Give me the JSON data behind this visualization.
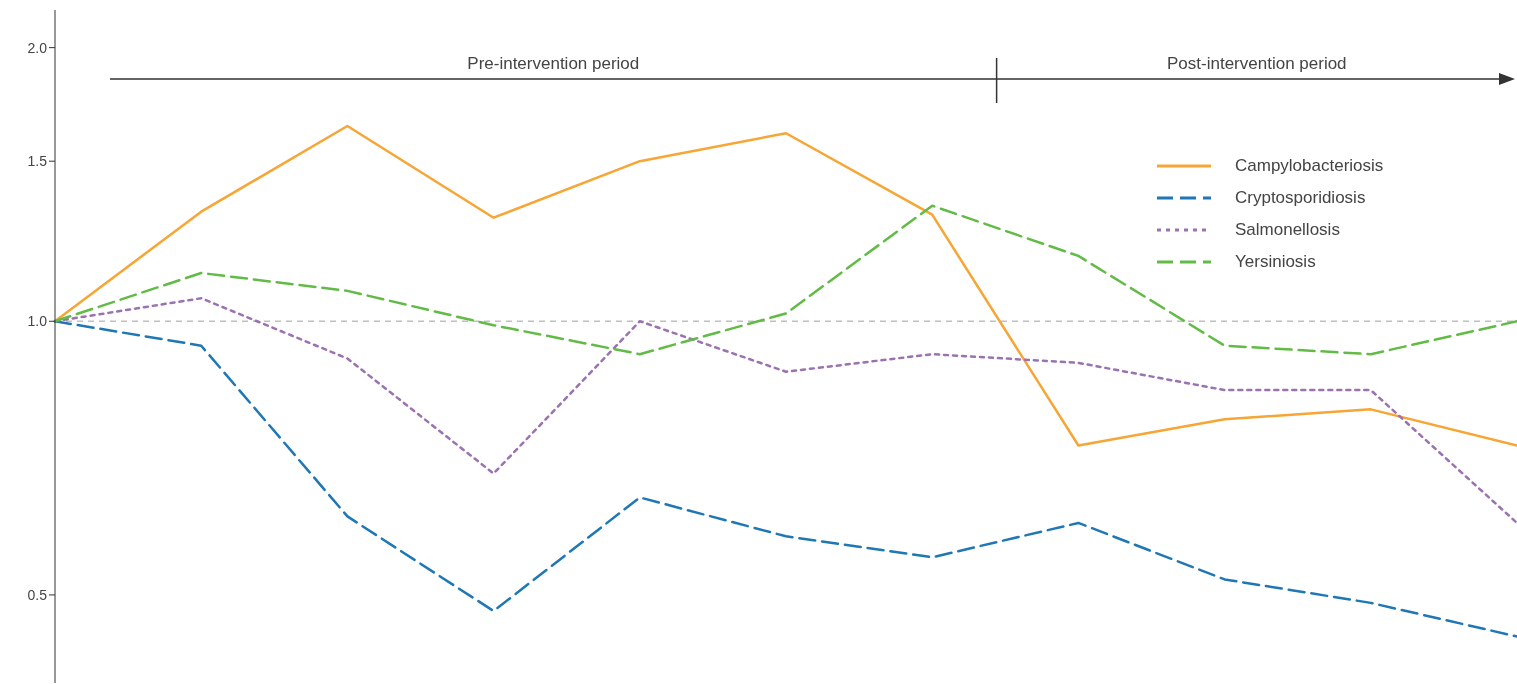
{
  "chart_data": {
    "type": "line",
    "log": "y",
    "categories": [
      null,
      null,
      null,
      null,
      null,
      null,
      null,
      null,
      null,
      null,
      null
    ],
    "series": [
      {
        "name": "Campylobacteriosis",
        "color": "#f7a534",
        "line_style": "solid",
        "values": [
          1.0,
          1.32,
          1.64,
          1.3,
          1.5,
          1.61,
          1.31,
          0.73,
          0.78,
          0.8,
          0.73
        ]
      },
      {
        "name": "Cryptosporidiosis",
        "color": "#1f77b4",
        "line_style": "dashed",
        "values": [
          1.0,
          0.94,
          0.61,
          0.48,
          0.64,
          0.58,
          0.55,
          0.6,
          0.52,
          0.49,
          0.45
        ]
      },
      {
        "name": "Salmonellosis",
        "color": "#9b72b0",
        "line_style": "dotted",
        "values": [
          1.0,
          1.06,
          0.91,
          0.68,
          1.0,
          0.88,
          0.92,
          0.9,
          0.84,
          0.84,
          0.6
        ]
      },
      {
        "name": "Yersiniosis",
        "color": "#62bb46",
        "line_style": "dashed",
        "values": [
          1.0,
          1.13,
          1.08,
          0.99,
          0.92,
          1.02,
          1.34,
          1.18,
          0.94,
          0.92,
          1.0
        ]
      }
    ],
    "ylim": [
      0.4,
      2.2
    ],
    "yticks": [
      {
        "value": 0.5,
        "label": "0.5"
      },
      {
        "value": 1,
        "label": "1.0"
      },
      {
        "value": 1.5,
        "label": "1.5"
      },
      {
        "value": 2,
        "label": "2.0"
      }
    ],
    "ref_lines": [
      {
        "axis": "y",
        "value": 1,
        "color": "#c0c0c0",
        "line_style": "dashed"
      }
    ],
    "annotations": [
      "Pre-intervention period",
      "Post-intervention period"
    ],
    "grid": false,
    "legend": "top right",
    "marker": "none"
  }
}
